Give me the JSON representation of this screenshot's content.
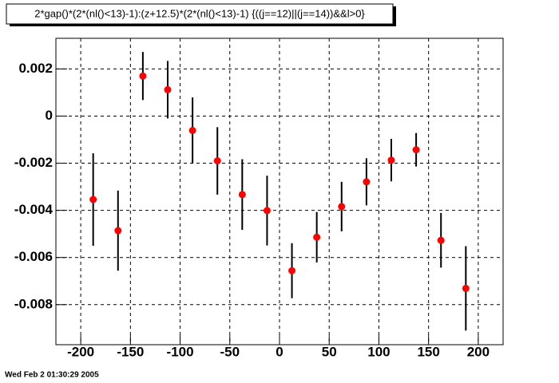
{
  "chart_data": {
    "type": "scatter",
    "title": "2*gap()*(2*(nl()<13)-1):(z+12.5)*(2*(nl()<13)-1) {((j==12)||(j==14))&&l>0}",
    "x": [
      -187.5,
      -162.5,
      -137.5,
      -112.5,
      -87.5,
      -62.5,
      -37.5,
      -12.5,
      12.5,
      37.5,
      62.5,
      87.5,
      112.5,
      137.5,
      162.5,
      187.5
    ],
    "values": [
      -0.00354,
      -0.00486,
      0.0017,
      0.00112,
      -0.00061,
      -0.0019,
      -0.00333,
      -0.00401,
      -0.00656,
      -0.00514,
      -0.00384,
      -0.00279,
      -0.00187,
      -0.00143,
      -0.00527,
      -0.00731
    ],
    "errors": [
      0.00196,
      0.0017,
      0.00102,
      0.00122,
      0.0014,
      0.00143,
      0.0015,
      0.00148,
      0.00117,
      0.00107,
      0.00105,
      0.001,
      0.0009,
      0.00071,
      0.00116,
      0.00179
    ],
    "color": "#ff0000",
    "xlim": [
      -225,
      225
    ],
    "ylim": [
      -0.0097,
      0.0033
    ],
    "xticks": [
      -200,
      -150,
      -100,
      -50,
      0,
      50,
      100,
      150,
      200
    ],
    "yticks": [
      -0.008,
      -0.006,
      -0.004,
      -0.002,
      0,
      0.002
    ],
    "grid": true
  },
  "footer": "Wed Feb  2 01:30:29 2005"
}
